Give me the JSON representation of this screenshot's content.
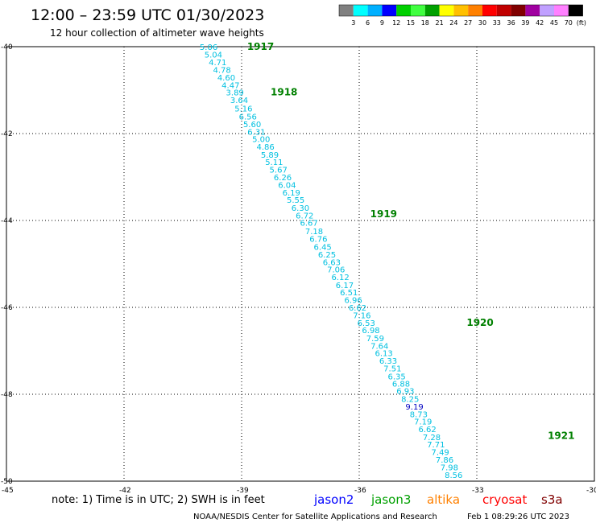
{
  "title": "12:00 – 23:59 UTC 01/30/2023",
  "subtitle": "12 hour collection of altimeter wave heights",
  "note": "note:  1) Time is in UTC;  2) SWH is in feet",
  "credit_left": "NOAA/NESDIS Center for Satellite Applications and Research",
  "credit_right": "Feb  1 08:29:26 UTC 2023",
  "colorbar": {
    "unit": "(ft)",
    "colors": [
      "#808080",
      "#00ffff",
      "#00b0ff",
      "#0000ff",
      "#00d000",
      "#40ff40",
      "#00a000",
      "#ffff00",
      "#ffc000",
      "#ff8000",
      "#ff0000",
      "#c00000",
      "#800000",
      "#a000a0",
      "#c0a0ff",
      "#ff80ff",
      "#000000"
    ],
    "labels": [
      "3",
      "6",
      "9",
      "12",
      "15",
      "18",
      "21",
      "24",
      "27",
      "30",
      "33",
      "36",
      "39",
      "42",
      "45",
      "70"
    ]
  },
  "satellites": [
    {
      "name": "jason2",
      "color": "#0000ff"
    },
    {
      "name": "jason3",
      "color": "#00a000"
    },
    {
      "name": "altika",
      "color": "#ff8000"
    },
    {
      "name": "cryosat",
      "color": "#ff0000"
    },
    {
      "name": "s3a",
      "color": "#800000"
    }
  ],
  "chart_data": {
    "type": "scatter",
    "xlim": [
      -45,
      -30
    ],
    "ylim": [
      -50,
      -40
    ],
    "x_ticks": [
      "-45",
      "-42",
      "-39",
      "-36",
      "-33",
      "-30"
    ],
    "y_ticks": [
      "-40",
      "-42",
      "-44",
      "-46",
      "-48",
      "-50"
    ],
    "grid": true,
    "hour_labels": [
      {
        "text": "1917",
        "lon": -38.86,
        "lat": -40.0
      },
      {
        "text": "1918",
        "lon": -38.26,
        "lat": -41.05
      },
      {
        "text": "1919",
        "lon": -35.72,
        "lat": -43.85
      },
      {
        "text": "1920",
        "lon": -33.26,
        "lat": -46.35
      },
      {
        "text": "1921",
        "lon": -31.19,
        "lat": -48.95
      }
    ],
    "points": [
      {
        "v": "5.06",
        "lon": -40.07,
        "lat": -40.0,
        "color": "#00c0e0"
      },
      {
        "v": "5.04",
        "lon": -39.95,
        "lat": -40.18,
        "color": "#00c0e0"
      },
      {
        "v": "4.71",
        "lon": -39.84,
        "lat": -40.35,
        "color": "#00c0e0"
      },
      {
        "v": "4.78",
        "lon": -39.73,
        "lat": -40.53,
        "color": "#00c0e0"
      },
      {
        "v": "4.60",
        "lon": -39.62,
        "lat": -40.7,
        "color": "#00c0e0"
      },
      {
        "v": "4.47",
        "lon": -39.51,
        "lat": -40.88,
        "color": "#00c0e0"
      },
      {
        "v": "3.89",
        "lon": -39.4,
        "lat": -41.05,
        "color": "#00c0e0"
      },
      {
        "v": "3.64",
        "lon": -39.29,
        "lat": -41.22,
        "color": "#00c0e0"
      },
      {
        "v": "5.16",
        "lon": -39.18,
        "lat": -41.42,
        "color": "#00c0e0"
      },
      {
        "v": "6.56",
        "lon": -39.07,
        "lat": -41.6,
        "color": "#00c0e0"
      },
      {
        "v": "5.60",
        "lon": -38.96,
        "lat": -41.78,
        "color": "#00c0e0"
      },
      {
        "v": "6.31",
        "lon": -38.85,
        "lat": -41.95,
        "color": "#00c0e0"
      },
      {
        "v": "5.00",
        "lon": -38.73,
        "lat": -42.12,
        "color": "#00c0e0"
      },
      {
        "v": "4.86",
        "lon": -38.62,
        "lat": -42.3,
        "color": "#00c0e0"
      },
      {
        "v": "5.89",
        "lon": -38.51,
        "lat": -42.48,
        "color": "#00c0e0"
      },
      {
        "v": "5.11",
        "lon": -38.4,
        "lat": -42.65,
        "color": "#00c0e0"
      },
      {
        "v": "5.67",
        "lon": -38.29,
        "lat": -42.82,
        "color": "#00c0e0"
      },
      {
        "v": "6.26",
        "lon": -38.18,
        "lat": -43.0,
        "color": "#00c0e0"
      },
      {
        "v": "6.04",
        "lon": -38.07,
        "lat": -43.18,
        "color": "#00c0e0"
      },
      {
        "v": "6.19",
        "lon": -37.96,
        "lat": -43.35,
        "color": "#00c0e0"
      },
      {
        "v": "5.55",
        "lon": -37.85,
        "lat": -43.52,
        "color": "#00c0e0"
      },
      {
        "v": "6.30",
        "lon": -37.73,
        "lat": -43.7,
        "color": "#00c0e0"
      },
      {
        "v": "6.72",
        "lon": -37.62,
        "lat": -43.88,
        "color": "#00c0e0"
      },
      {
        "v": "6.67",
        "lon": -37.51,
        "lat": -44.05,
        "color": "#00c0e0"
      },
      {
        "v": "7.18",
        "lon": -37.38,
        "lat": -44.24,
        "color": "#00c0e0"
      },
      {
        "v": "6.76",
        "lon": -37.27,
        "lat": -44.42,
        "color": "#00c0e0"
      },
      {
        "v": "6.45",
        "lon": -37.16,
        "lat": -44.6,
        "color": "#00c0e0"
      },
      {
        "v": "6.25",
        "lon": -37.05,
        "lat": -44.78,
        "color": "#00c0e0"
      },
      {
        "v": "6.63",
        "lon": -36.93,
        "lat": -44.95,
        "color": "#00c0e0"
      },
      {
        "v": "7.06",
        "lon": -36.82,
        "lat": -45.12,
        "color": "#00c0e0"
      },
      {
        "v": "6.12",
        "lon": -36.71,
        "lat": -45.3,
        "color": "#00c0e0"
      },
      {
        "v": "6.17",
        "lon": -36.6,
        "lat": -45.48,
        "color": "#00c0e0"
      },
      {
        "v": "6.51",
        "lon": -36.49,
        "lat": -45.65,
        "color": "#00c0e0"
      },
      {
        "v": "6.96",
        "lon": -36.38,
        "lat": -45.82,
        "color": "#00c0e0"
      },
      {
        "v": "6.62",
        "lon": -36.27,
        "lat": -46.0,
        "color": "#00c0e0"
      },
      {
        "v": "7.16",
        "lon": -36.16,
        "lat": -46.18,
        "color": "#00c0e0"
      },
      {
        "v": "6.53",
        "lon": -36.05,
        "lat": -46.35,
        "color": "#00c0e0"
      },
      {
        "v": "6.98",
        "lon": -35.93,
        "lat": -46.52,
        "color": "#00c0e0"
      },
      {
        "v": "7.59",
        "lon": -35.82,
        "lat": -46.7,
        "color": "#00c0e0"
      },
      {
        "v": "7.64",
        "lon": -35.71,
        "lat": -46.88,
        "color": "#00c0e0"
      },
      {
        "v": "6.13",
        "lon": -35.6,
        "lat": -47.05,
        "color": "#00c0e0"
      },
      {
        "v": "6.33",
        "lon": -35.49,
        "lat": -47.22,
        "color": "#00c0e0"
      },
      {
        "v": "7.51",
        "lon": -35.38,
        "lat": -47.4,
        "color": "#00c0e0"
      },
      {
        "v": "6.35",
        "lon": -35.27,
        "lat": -47.58,
        "color": "#00c0e0"
      },
      {
        "v": "6.88",
        "lon": -35.16,
        "lat": -47.75,
        "color": "#00c0e0"
      },
      {
        "v": "6.93",
        "lon": -35.05,
        "lat": -47.92,
        "color": "#00c0e0"
      },
      {
        "v": "8.25",
        "lon": -34.93,
        "lat": -48.1,
        "color": "#00c0e0"
      },
      {
        "v": "9.19",
        "lon": -34.82,
        "lat": -48.28,
        "color": "#0000c0"
      },
      {
        "v": "8.73",
        "lon": -34.71,
        "lat": -48.45,
        "color": "#00c0e0"
      },
      {
        "v": "7.19",
        "lon": -34.6,
        "lat": -48.62,
        "color": "#00c0e0"
      },
      {
        "v": "6.62",
        "lon": -34.49,
        "lat": -48.8,
        "color": "#00c0e0"
      },
      {
        "v": "7.28",
        "lon": -34.38,
        "lat": -48.98,
        "color": "#00c0e0"
      },
      {
        "v": "7.71",
        "lon": -34.27,
        "lat": -49.15,
        "color": "#00c0e0"
      },
      {
        "v": "7.49",
        "lon": -34.16,
        "lat": -49.32,
        "color": "#00c0e0"
      },
      {
        "v": "7.86",
        "lon": -34.05,
        "lat": -49.5,
        "color": "#00c0e0"
      },
      {
        "v": "7.98",
        "lon": -33.93,
        "lat": -49.68,
        "color": "#00c0e0"
      },
      {
        "v": "8.56",
        "lon": -33.82,
        "lat": -49.85,
        "color": "#00c0e0"
      }
    ]
  }
}
